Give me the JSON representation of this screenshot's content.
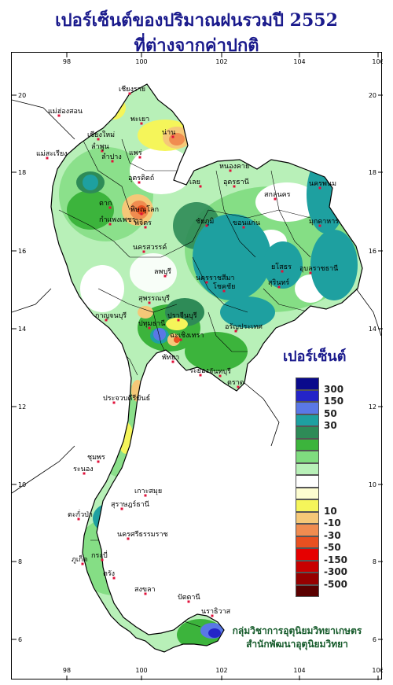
{
  "title": {
    "line1": "เปอร์เซ็นต์ของปริมาณฝนรวมปี 2552",
    "line2": "ที่ต่างจากค่าปกติ"
  },
  "axes": {
    "lon_ticks": [
      "98",
      "100",
      "102",
      "104",
      "106"
    ],
    "lat_ticks": [
      "20",
      "18",
      "16",
      "14",
      "12",
      "10",
      "8",
      "6"
    ]
  },
  "legend": {
    "title": "เปอร์เซ็นต์",
    "labels": [
      "300",
      "150",
      "50",
      "30",
      "10",
      "-10",
      "-30",
      "-50",
      "-150",
      "-300",
      "-500"
    ],
    "colors": [
      "#0a0a8c",
      "#2424c8",
      "#5a78e6",
      "#1ea0a0",
      "#2e8b57",
      "#3cb43c",
      "#7fdc7f",
      "#b8f0b8",
      "#ffffff",
      "#fdfdd0",
      "#f5f55a",
      "#f5c878",
      "#f08c50",
      "#e85020",
      "#e60000",
      "#c80000",
      "#960000",
      "#5a0000"
    ]
  },
  "places": [
    {
      "name": "เชียงราย"
    },
    {
      "name": "แม่ฮ่องสอน"
    },
    {
      "name": "พะเยา"
    },
    {
      "name": "น่าน"
    },
    {
      "name": "เชียงใหม่"
    },
    {
      "name": "ลำพูน"
    },
    {
      "name": "ลำปาง"
    },
    {
      "name": "แพร่"
    },
    {
      "name": "แม่สะเรียง"
    },
    {
      "name": "อุตรดิตถ์"
    },
    {
      "name": "ตาก"
    },
    {
      "name": "พิษณุโลก"
    },
    {
      "name": "กำแพงเพชร"
    },
    {
      "name": "พิจิตร"
    },
    {
      "name": "หนองคาย"
    },
    {
      "name": "อุดรธานี"
    },
    {
      "name": "เลย"
    },
    {
      "name": "นครพนม"
    },
    {
      "name": "สกลนคร"
    },
    {
      "name": "มุกดาหาร"
    },
    {
      "name": "ขอนแก่น"
    },
    {
      "name": "ชัยภูมิ"
    },
    {
      "name": "นครสวรรค์"
    },
    {
      "name": "อุบลราชธานี"
    },
    {
      "name": "สุรินทร์"
    },
    {
      "name": "ยโสธร"
    },
    {
      "name": "นครราชสีมา"
    },
    {
      "name": "โชคชัย"
    },
    {
      "name": "ลพบุรี"
    },
    {
      "name": "สุพรรณบุรี"
    },
    {
      "name": "กาญจนบุรี"
    },
    {
      "name": "ปทุมธานี"
    },
    {
      "name": "ปราจีนบุรี"
    },
    {
      "name": "อรัญประเทศ"
    },
    {
      "name": "ฉะเชิงเทรา"
    },
    {
      "name": "พัทยา"
    },
    {
      "name": "ระยอง"
    },
    {
      "name": "จันทบุรี"
    },
    {
      "name": "ตราด"
    },
    {
      "name": "ประจวบคีรีขันธ์"
    },
    {
      "name": "ชุมพร"
    },
    {
      "name": "ระนอง"
    },
    {
      "name": "สุราษฎร์ธานี"
    },
    {
      "name": "เกาะสมุย"
    },
    {
      "name": "ตะกั่วป่า"
    },
    {
      "name": "นครศรีธรรมราช"
    },
    {
      "name": "ภูเก็ต"
    },
    {
      "name": "กระบี่"
    },
    {
      "name": "ตรัง"
    },
    {
      "name": "สงขลา"
    },
    {
      "name": "ปัตตานี"
    },
    {
      "name": "นราธิวาส"
    }
  ],
  "credit": {
    "line1": "กลุ่มวิชาการอุตุนิยมวิทยาเกษตร",
    "line2": "สำนักพัฒนาอุตุนิยมวิทยา"
  }
}
